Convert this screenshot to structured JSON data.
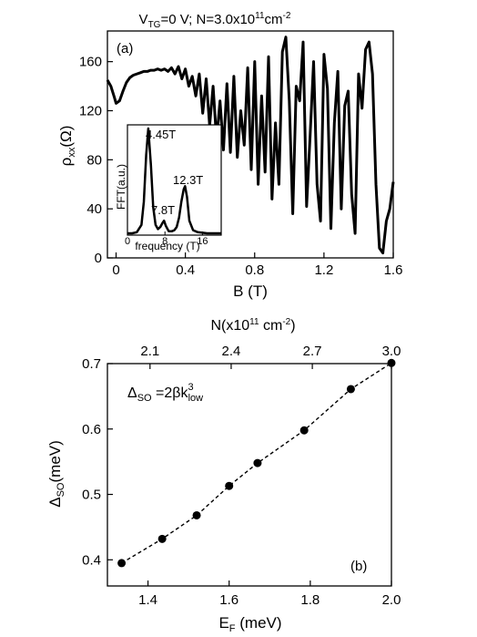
{
  "chart_data": [
    {
      "type": "line",
      "title_parts": {
        "v": "V",
        "tg": "TG",
        "eq": "=0 V;  N=3.0x10",
        "exp": "11",
        "unit": "cm",
        "uexp": "-2"
      },
      "panel_label": "(a)",
      "xlabel": "B (T)",
      "ylabel_parts": {
        "rho": "ρ",
        "sub": "xx",
        "unit": "(Ω)"
      },
      "xlim": [
        -0.05,
        1.6
      ],
      "ylim": [
        0,
        185
      ],
      "x_ticks": [
        0,
        0.4,
        0.8,
        1.2,
        1.6
      ],
      "x_tick_labels": [
        "0",
        "0.4",
        "0.8",
        "1.2",
        "1.6"
      ],
      "y_ticks": [
        0,
        40,
        80,
        120,
        160
      ],
      "y_tick_labels": [
        "0",
        "40",
        "80",
        "120",
        "160"
      ],
      "series": [
        {
          "x": [
            -0.05,
            -0.03,
            -0.01,
            0.0,
            0.02,
            0.04,
            0.06,
            0.08,
            0.1,
            0.12,
            0.14,
            0.16,
            0.18,
            0.2,
            0.22,
            0.24,
            0.26,
            0.28,
            0.3,
            0.32,
            0.34,
            0.36,
            0.38,
            0.4,
            0.42,
            0.44,
            0.46,
            0.48,
            0.5,
            0.52,
            0.54,
            0.56,
            0.58,
            0.6,
            0.62,
            0.64,
            0.66,
            0.68,
            0.7,
            0.72,
            0.74,
            0.76,
            0.78,
            0.8,
            0.82,
            0.84,
            0.86,
            0.88,
            0.9,
            0.92,
            0.94,
            0.96,
            0.98,
            1.0,
            1.02,
            1.04,
            1.06,
            1.08,
            1.1,
            1.12,
            1.14,
            1.16,
            1.18,
            1.2,
            1.22,
            1.24,
            1.26,
            1.28,
            1.3,
            1.32,
            1.34,
            1.36,
            1.38,
            1.4,
            1.42,
            1.44,
            1.46,
            1.48,
            1.5,
            1.52,
            1.54,
            1.56,
            1.58,
            1.6
          ],
          "y": [
            145,
            140,
            131,
            126,
            128,
            136,
            143,
            147,
            149,
            150,
            151,
            152,
            152,
            153,
            153,
            154,
            153,
            154,
            152,
            155,
            150,
            156,
            146,
            154,
            140,
            148,
            132,
            150,
            118,
            146,
            108,
            140,
            96,
            128,
            88,
            142,
            86,
            148,
            82,
            120,
            92,
            155,
            72,
            160,
            60,
            132,
            70,
            164,
            48,
            110,
            60,
            168,
            180,
            128,
            36,
            140,
            128,
            176,
            42,
            100,
            160,
            60,
            30,
            166,
            138,
            24,
            110,
            152,
            40,
            124,
            136,
            52,
            20,
            150,
            122,
            170,
            176,
            150,
            60,
            8,
            4,
            30,
            40,
            62
          ]
        }
      ]
    },
    {
      "type": "line",
      "inset_of": 0,
      "xlabel": "frequency (T)",
      "ylabel": "FFT(a.u.)",
      "xlim": [
        0,
        20
      ],
      "x_ticks": [
        0,
        8,
        16
      ],
      "x_tick_labels": [
        "0",
        "8",
        "16"
      ],
      "annotations": [
        "4.45T",
        "7.8T",
        "12.3T"
      ],
      "series": [
        {
          "x": [
            0,
            1,
            2,
            3,
            3.5,
            4,
            4.45,
            5,
            5.5,
            6,
            6.5,
            7,
            7.5,
            7.8,
            8.2,
            8.8,
            9.5,
            10,
            10.5,
            11,
            11.5,
            12,
            12.3,
            12.7,
            13.2,
            14,
            15,
            16,
            17,
            18,
            19,
            20
          ],
          "y": [
            0,
            0,
            0.01,
            0.08,
            0.3,
            0.75,
            1.0,
            0.65,
            0.25,
            0.08,
            0.04,
            0.06,
            0.1,
            0.12,
            0.07,
            0.02,
            0.02,
            0.03,
            0.06,
            0.15,
            0.3,
            0.42,
            0.45,
            0.35,
            0.12,
            0.03,
            0.01,
            0.005,
            0,
            0,
            0,
            0
          ]
        }
      ]
    },
    {
      "type": "scatter",
      "panel_label": "(b)",
      "xlabel": "E",
      "xlabel_sub": "F",
      "xlabel_unit": " (meV)",
      "ylabel": "Δ",
      "ylabel_sub": "SO",
      "ylabel_unit": "(meV)",
      "top_xlabel_parts": {
        "pre": "N(x10",
        "exp": "11",
        "mid": " cm",
        "uexp": "-2",
        "post": ")"
      },
      "formula_parts": {
        "d": "Δ",
        "dsub": "SO",
        "eq": " =2βk",
        "ksup": "3",
        "ksub": "low"
      },
      "xlim": [
        1.3,
        2.0
      ],
      "ylim": [
        0.36,
        0.7
      ],
      "x_ticks": [
        1.4,
        1.6,
        1.8,
        2.0
      ],
      "x_tick_labels": [
        "1.4",
        "1.6",
        "1.8",
        "2.0"
      ],
      "y_ticks": [
        0.4,
        0.5,
        0.6,
        0.7
      ],
      "y_tick_labels": [
        "0.4",
        "0.5",
        "0.6",
        "0.7"
      ],
      "top_x_ticks": [
        1.405,
        1.605,
        1.805,
        2.0
      ],
      "top_x_tick_labels": [
        "2.1",
        "2.4",
        "2.7",
        "3.0"
      ],
      "series": [
        {
          "x": [
            1.335,
            1.435,
            1.52,
            1.6,
            1.67,
            1.785,
            1.9,
            2.0
          ],
          "y": [
            0.395,
            0.432,
            0.468,
            0.513,
            0.548,
            0.598,
            0.661,
            0.701
          ],
          "style": "points with dashed line"
        }
      ]
    }
  ]
}
